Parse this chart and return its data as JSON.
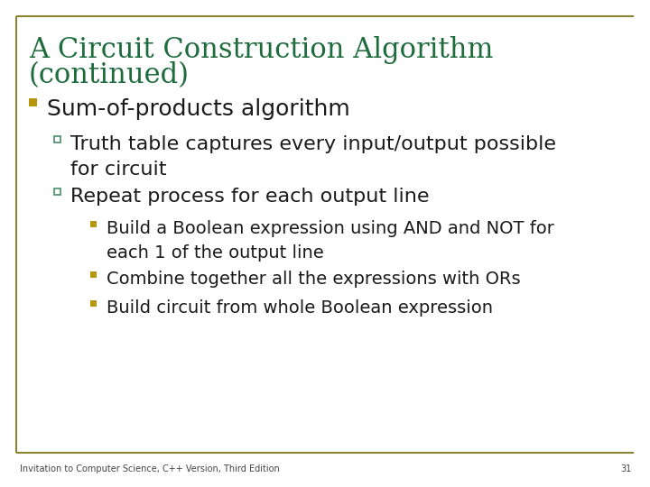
{
  "title_line1": "A Circuit Construction Algorithm",
  "title_line2": "(continued)",
  "title_color": "#1e6b3c",
  "bg_color": "#ffffff",
  "border_color": "#8b8430",
  "bullet1_color": "#b8960c",
  "bullet2_color": "#4a8c6a",
  "bullet3_color": "#b8960c",
  "text_color": "#1a1a1a",
  "footer_text": "Invitation to Computer Science, C++ Version, Third Edition",
  "footer_page": "31",
  "title_fontsize": 22,
  "l1_fontsize": 18,
  "l2_fontsize": 16,
  "l3_fontsize": 14
}
